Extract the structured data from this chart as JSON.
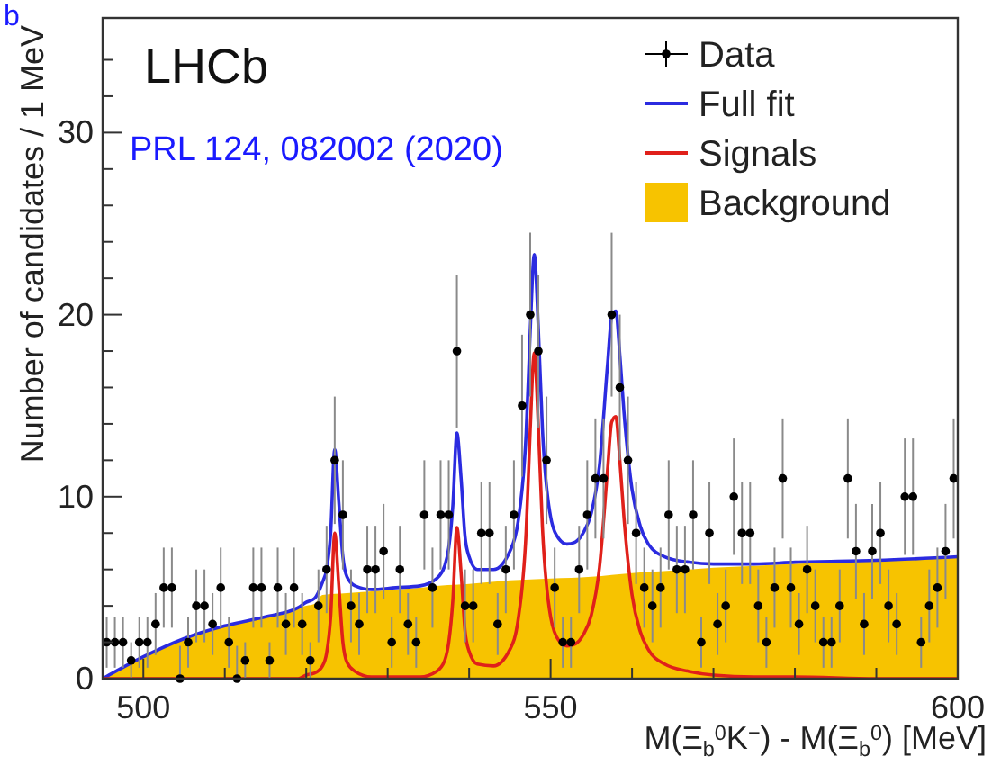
{
  "chart_data": {
    "type": "scatter",
    "xlabel": "M(Ξ$_{b}$$^{0}$K$^{−}$) - M(Ξ$_{b}$$^{0}$) [MeV]",
    "ylabel": "Number of candidates / 1 MeV",
    "annotations": [
      "b",
      "LHCb",
      "PRL 124, 082002 (2020)"
    ],
    "xlim": [
      495,
      600
    ],
    "ylim": [
      0,
      36.3
    ],
    "xticks": [
      500,
      {
        "value": 510,
        "label": null
      },
      {
        "value": 520,
        "label": null
      },
      {
        "value": 530,
        "label": null
      },
      {
        "value": 540,
        "label": null
      },
      550,
      {
        "value": 560,
        "label": null
      },
      {
        "value": 570,
        "label": null
      },
      {
        "value": 580,
        "label": null
      },
      {
        "value": 590,
        "label": null
      },
      600
    ],
    "yticks": [
      0,
      {
        "value": 2,
        "label": null
      },
      {
        "value": 4,
        "label": null
      },
      {
        "value": 6,
        "label": null
      },
      {
        "value": 8,
        "label": null
      },
      10,
      {
        "value": 12,
        "label": null
      },
      {
        "value": 14,
        "label": null
      },
      {
        "value": 16,
        "label": null
      },
      {
        "value": 18,
        "label": null
      },
      20,
      {
        "value": 22,
        "label": null
      },
      {
        "value": 24,
        "label": null
      },
      {
        "value": 26,
        "label": null
      },
      {
        "value": 28,
        "label": null
      },
      30,
      {
        "value": 32,
        "label": null
      },
      {
        "value": 34,
        "label": null
      }
    ],
    "legend": "top right",
    "line_style": "solid",
    "series": [
      {
        "name": "Data",
        "marker": "circle",
        "color": "#000000",
        "x": [
          495.5,
          496.5,
          497.5,
          498.5,
          499.5,
          500.5,
          501.5,
          502.5,
          503.5,
          504.5,
          505.5,
          506.5,
          507.5,
          508.5,
          509.5,
          510.5,
          511.5,
          512.5,
          513.5,
          514.5,
          515.5,
          516.5,
          517.5,
          518.5,
          519.5,
          520.5,
          521.5,
          522.5,
          523.5,
          524.5,
          525.5,
          526.5,
          527.5,
          528.5,
          529.5,
          530.5,
          531.5,
          532.5,
          533.5,
          534.5,
          535.5,
          536.5,
          537.5,
          538.5,
          539.5,
          540.5,
          541.5,
          542.5,
          543.5,
          544.5,
          545.5,
          546.5,
          547.5,
          548.5,
          549.5,
          550.5,
          551.5,
          552.5,
          553.5,
          554.5,
          555.5,
          556.5,
          557.5,
          558.5,
          559.5,
          560.5,
          561.5,
          562.5,
          563.5,
          564.5,
          565.5,
          566.5,
          567.5,
          568.5,
          569.5,
          570.5,
          571.5,
          572.5,
          573.5,
          574.5,
          575.5,
          576.5,
          577.5,
          578.5,
          579.5,
          580.5,
          581.5,
          582.5,
          583.5,
          584.5,
          585.5,
          586.5,
          587.5,
          588.5,
          589.5,
          590.5,
          591.5,
          592.5,
          593.5,
          594.5,
          595.5,
          596.5,
          597.5,
          598.5,
          599.5
        ],
        "values": [
          2,
          2,
          2,
          1,
          2,
          2,
          3,
          5,
          5,
          0,
          2,
          4,
          4,
          3,
          5,
          2,
          0,
          1,
          5,
          5,
          1,
          5,
          3,
          5,
          3,
          1,
          4,
          6,
          12,
          9,
          4,
          3,
          6,
          6,
          7,
          2,
          6,
          3,
          2,
          9,
          5,
          9,
          9,
          18,
          4,
          4,
          8,
          8,
          3,
          6,
          9,
          15,
          20,
          18,
          12,
          5,
          2,
          2,
          6,
          9,
          11,
          11,
          20,
          16,
          12,
          8,
          5,
          4,
          5,
          9,
          6,
          6,
          9,
          2,
          8,
          3,
          4,
          10,
          8,
          8,
          4,
          2,
          5,
          11,
          5,
          3,
          6,
          4,
          2,
          2,
          4,
          11,
          7,
          3,
          7,
          8,
          4,
          3,
          10,
          10,
          2,
          4,
          5,
          7,
          11
        ],
        "errors": [
          1.4,
          1.4,
          1.4,
          1,
          1.4,
          1.4,
          1.7,
          2.2,
          2.2,
          [
            0,
            1.8
          ],
          1.4,
          2,
          2,
          1.7,
          2.2,
          1.4,
          [
            0,
            1.8
          ],
          1,
          2.2,
          2.2,
          1,
          2.2,
          1.7,
          2.2,
          1.7,
          1,
          2,
          2.4,
          3.5,
          3,
          2,
          1.7,
          2.4,
          2.4,
          2.6,
          1.4,
          2.4,
          1.7,
          1.4,
          3,
          2.2,
          3,
          3,
          4.2,
          2,
          2,
          2.8,
          2.8,
          1.7,
          2.4,
          3,
          3.9,
          4.5,
          4.2,
          3.5,
          2.2,
          1.4,
          1.4,
          2.4,
          3,
          3.3,
          3.3,
          4.5,
          4,
          3.5,
          2.8,
          2.2,
          2,
          2.2,
          3,
          2.4,
          2.4,
          3,
          1.4,
          2.8,
          1.7,
          2,
          3.2,
          2.8,
          2.8,
          2,
          1.4,
          2.2,
          3.3,
          2.2,
          1.7,
          2.4,
          2,
          1.4,
          1.4,
          2,
          3.3,
          2.6,
          1.7,
          2.6,
          2.8,
          2,
          1.7,
          3.2,
          3.2,
          1.4,
          2,
          2.2,
          2.6,
          3.3
        ]
      },
      {
        "name": "Full fit",
        "type": "line",
        "color": "#2b2be0",
        "x": [
          495,
          500,
          505,
          510,
          515,
          519,
          520,
          521,
          522,
          522.5,
          523,
          523.5,
          524,
          524.5,
          525,
          526,
          528,
          531,
          534,
          536,
          537,
          537.5,
          538,
          538.5,
          539,
          539.5,
          540,
          541,
          543,
          545,
          546,
          547,
          547.5,
          548,
          548.5,
          549,
          550,
          551,
          552,
          553,
          554,
          555,
          556,
          557,
          557.5,
          558,
          558.5,
          559,
          560,
          561,
          562,
          564,
          567,
          570,
          575,
          580,
          590,
          600
        ],
        "values": [
          0,
          1.2,
          2.2,
          2.9,
          3.4,
          3.9,
          4.2,
          4.4,
          5.3,
          6.0,
          8.0,
          12.6,
          9.7,
          6.7,
          5.6,
          5.1,
          4.9,
          5.0,
          5.1,
          5.5,
          6.2,
          7.2,
          9.5,
          13.5,
          11.1,
          7.8,
          6.7,
          6.0,
          6.0,
          7.0,
          8.6,
          13.5,
          19.1,
          23.3,
          19.2,
          13.7,
          8.9,
          7.7,
          7.4,
          7.5,
          8.0,
          9.1,
          11.7,
          17.3,
          19.9,
          20.2,
          17.8,
          14.7,
          10.4,
          8.4,
          7.4,
          6.7,
          6.4,
          6.3,
          6.3,
          6.4,
          6.5,
          6.7
        ]
      },
      {
        "name": "Signals",
        "type": "line",
        "color": "#e0201a",
        "x": [
          495,
          519,
          520,
          521,
          522,
          522.5,
          523,
          523.5,
          524,
          524.5,
          525,
          526,
          528,
          531,
          534,
          536,
          537,
          537.5,
          538,
          538.5,
          539,
          539.5,
          540,
          541,
          543,
          545,
          546,
          547,
          547.5,
          548,
          548.5,
          549,
          550,
          551,
          552,
          553,
          554,
          555,
          556,
          557,
          557.5,
          558,
          558.5,
          559,
          560,
          561,
          562,
          564,
          567,
          570,
          575,
          580,
          590,
          600
        ],
        "values": [
          0,
          0,
          0.2,
          0.3,
          0.7,
          1.4,
          3.4,
          8.0,
          5.1,
          2.0,
          0.9,
          0.4,
          0.1,
          0.1,
          0.1,
          0.4,
          1.0,
          2.0,
          4.3,
          8.3,
          5.9,
          2.6,
          1.5,
          0.8,
          0.7,
          1.6,
          3.2,
          8.1,
          13.7,
          17.9,
          13.8,
          8.3,
          3.4,
          2.1,
          1.8,
          1.9,
          2.4,
          3.5,
          6.1,
          11.5,
          14.1,
          14.4,
          12.0,
          8.9,
          4.6,
          2.6,
          1.6,
          0.8,
          0.4,
          0.2,
          0.1,
          0.1,
          0,
          0
        ]
      },
      {
        "name": "Background",
        "type": "area",
        "color": "#f7c300",
        "x": [
          495,
          500,
          505,
          510,
          515,
          519,
          520,
          521,
          522,
          525,
          528,
          531,
          534,
          536,
          540,
          545,
          550,
          555,
          560,
          567,
          570,
          575,
          580,
          590,
          600
        ],
        "values": [
          0,
          1.2,
          2.2,
          2.9,
          3.4,
          3.9,
          4.0,
          4.1,
          4.6,
          4.7,
          4.8,
          4.9,
          5.0,
          5.1,
          5.2,
          5.4,
          5.5,
          5.6,
          5.8,
          6.0,
          6.1,
          6.2,
          6.3,
          6.5,
          6.7
        ]
      }
    ]
  }
}
